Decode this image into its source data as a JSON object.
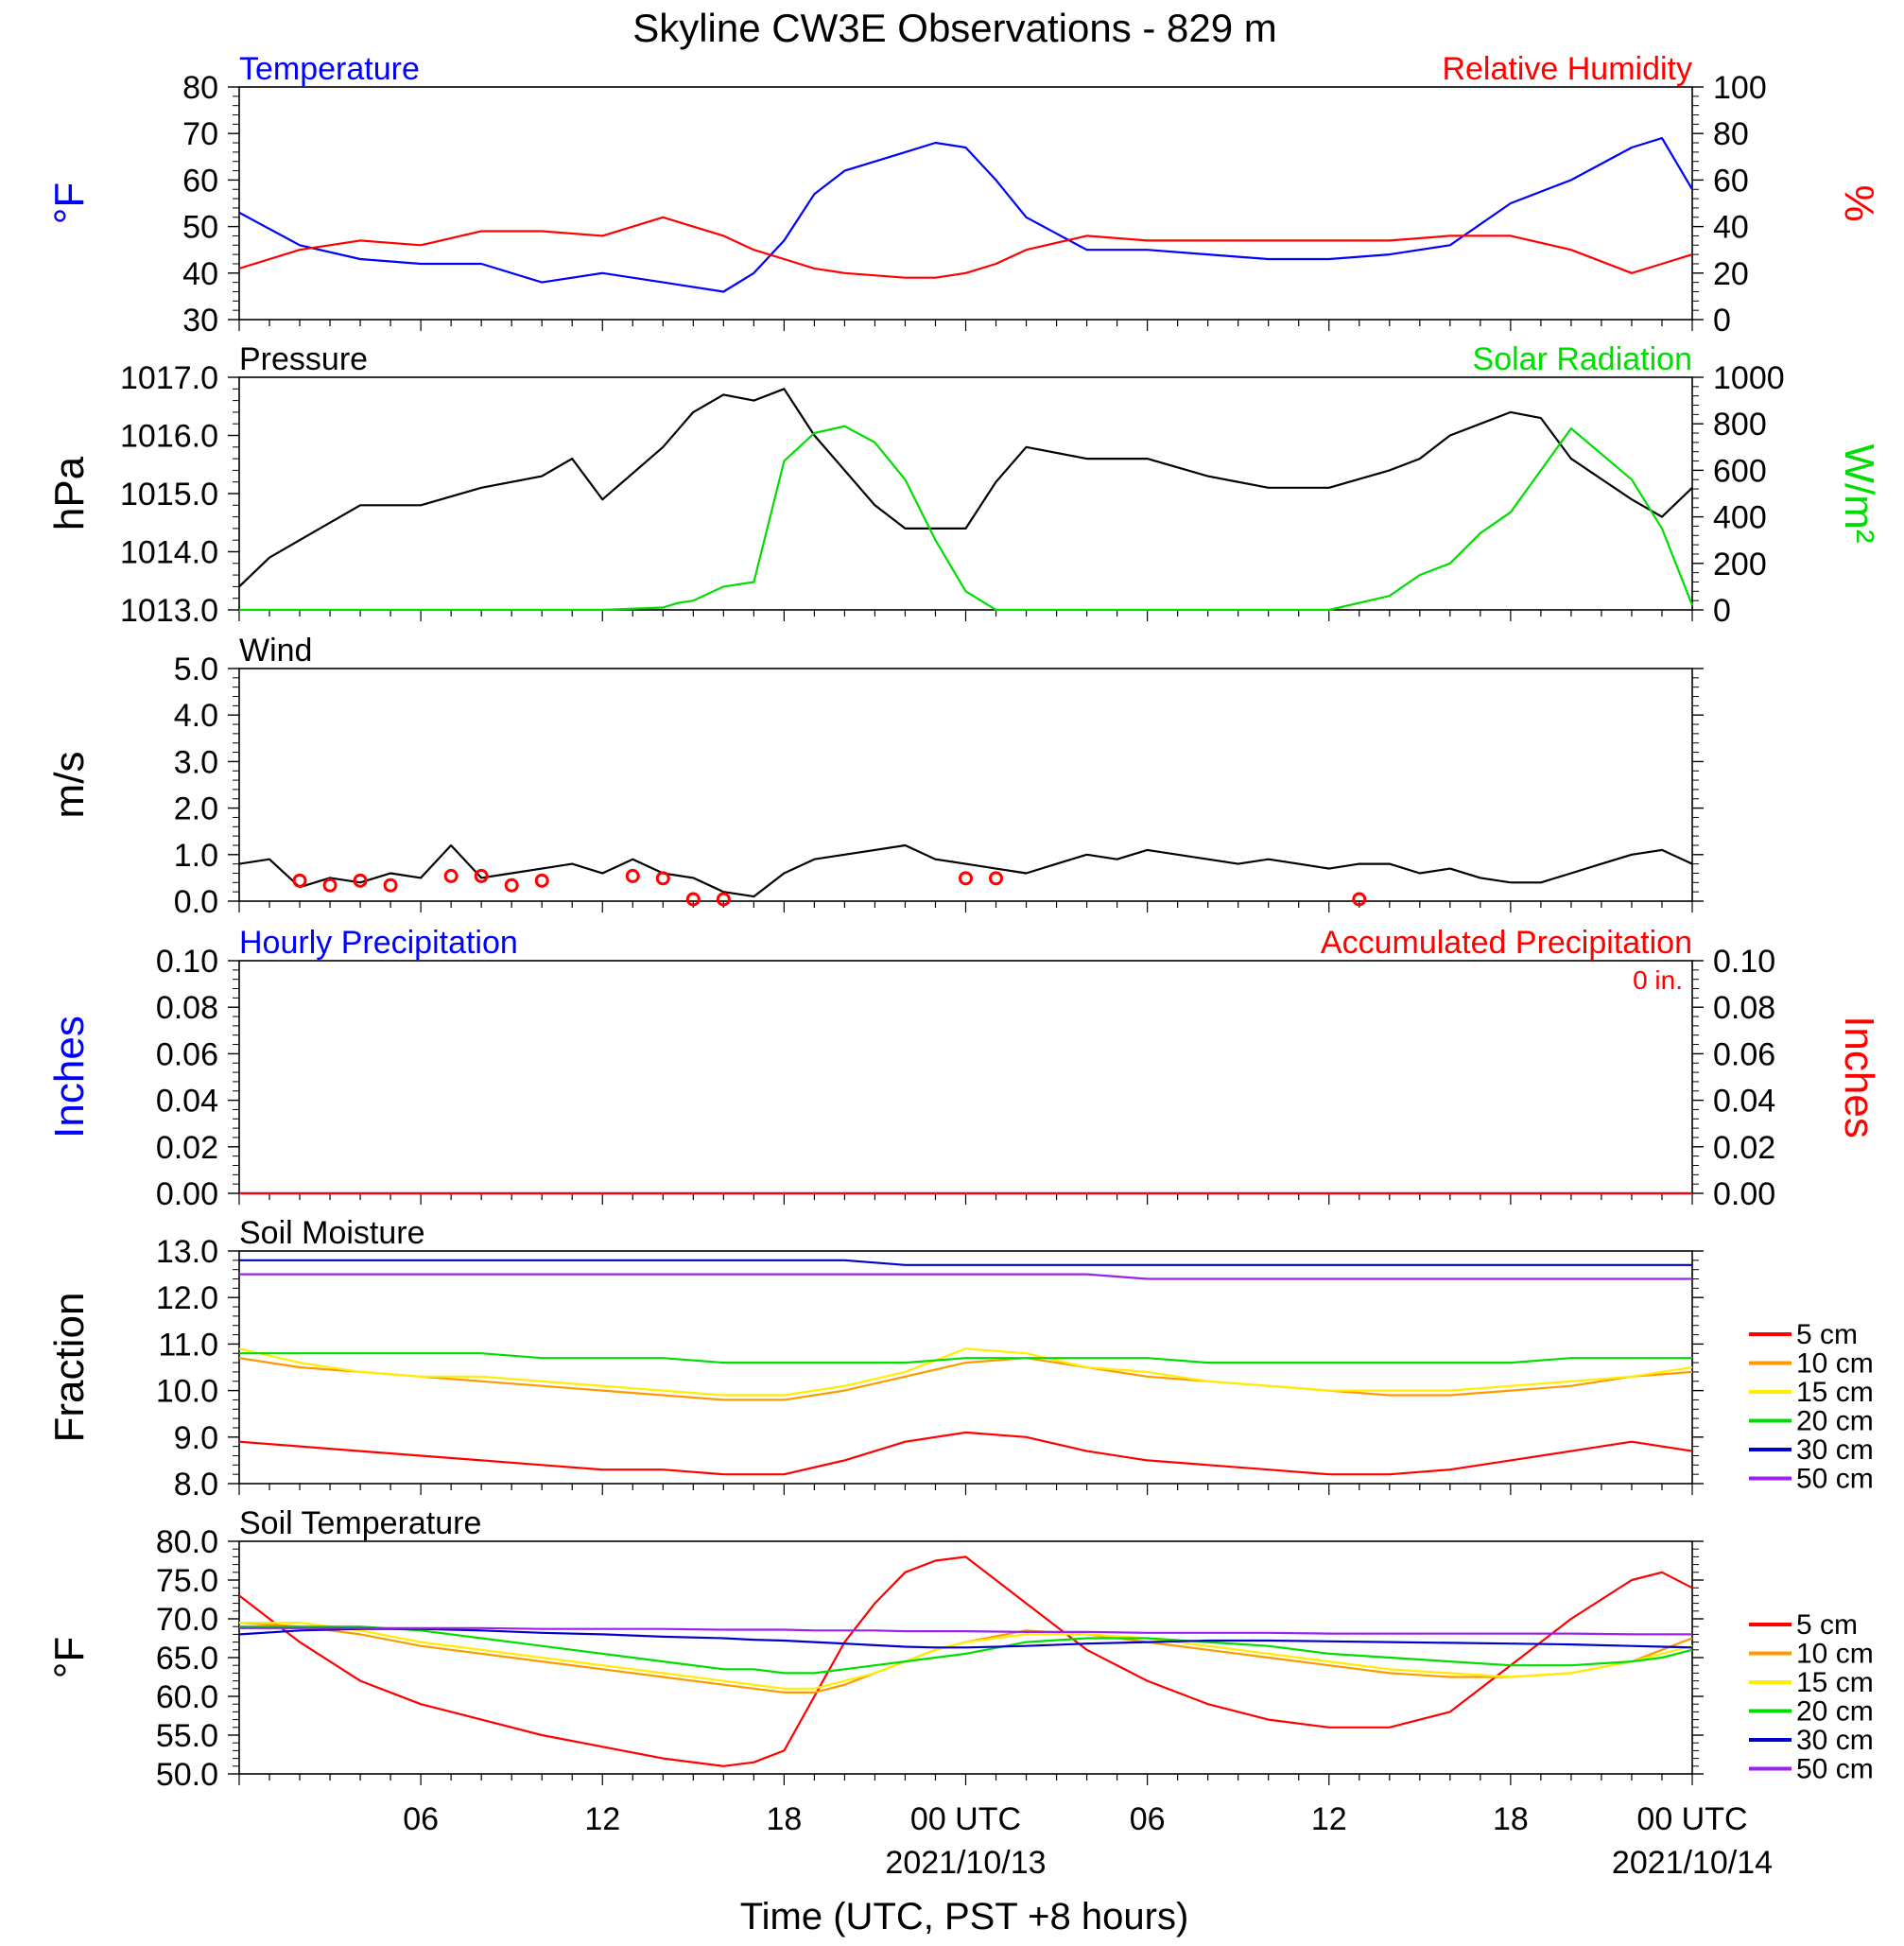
{
  "title": "Skyline CW3E Observations - 829 m",
  "xlabel": "Time (UTC, PST +8 hours)",
  "xticks": [
    {
      "h": 6,
      "label": "06",
      "date": ""
    },
    {
      "h": 12,
      "label": "12",
      "date": ""
    },
    {
      "h": 18,
      "label": "18",
      "date": ""
    },
    {
      "h": 24,
      "label": "00 UTC",
      "date": "2021/10/13"
    },
    {
      "h": 30,
      "label": "06",
      "date": ""
    },
    {
      "h": 36,
      "label": "12",
      "date": ""
    },
    {
      "h": 42,
      "label": "18",
      "date": ""
    },
    {
      "h": 48,
      "label": "00 UTC",
      "date": "2021/10/14"
    }
  ],
  "colors": {
    "blue": "#0000ff",
    "red": "#ff0000",
    "green": "#00dd00",
    "black": "#000000",
    "orange": "#ff9900",
    "yellow": "#ffee00",
    "purple": "#9922ee",
    "dark_blue": "#0000cc"
  },
  "chart_data": [
    {
      "id": "temp_rh",
      "type": "line",
      "left_label": "Temperature",
      "right_label": "Relative Humidity",
      "ylabel": "°F",
      "ylabel_right": "%",
      "ylim": [
        30,
        80
      ],
      "ylim_right": [
        0,
        100
      ],
      "yticks": [
        "30",
        "40",
        "50",
        "60",
        "70",
        "80"
      ],
      "yticks_right": [
        "0",
        "20",
        "40",
        "60",
        "80",
        "100"
      ],
      "x_hours": [
        0,
        2,
        4,
        6,
        8,
        10,
        12,
        14,
        16,
        17,
        18,
        19,
        20,
        22,
        23,
        24,
        25,
        26,
        28,
        30,
        32,
        34,
        36,
        38,
        40,
        42,
        44,
        46,
        47,
        48
      ],
      "series": [
        {
          "name": "Temperature",
          "axis": "left",
          "color": "blue",
          "values": [
            53,
            46,
            43,
            42,
            42,
            38,
            40,
            38,
            36,
            40,
            47,
            57,
            62,
            66,
            68,
            67,
            60,
            52,
            45,
            45,
            44,
            43,
            43,
            44,
            46,
            55,
            60,
            67,
            69,
            58
          ]
        },
        {
          "name": "Relative Humidity",
          "axis": "right",
          "color": "red",
          "values": [
            22,
            30,
            34,
            32,
            38,
            38,
            36,
            44,
            36,
            30,
            26,
            22,
            20,
            18,
            18,
            20,
            24,
            30,
            36,
            34,
            34,
            34,
            34,
            34,
            36,
            36,
            30,
            20,
            24,
            28
          ]
        }
      ]
    },
    {
      "id": "press_solar",
      "type": "line",
      "left_label": "Pressure",
      "right_label": "Solar Radiation",
      "ylabel": "hPa",
      "ylabel_right": "W/m²",
      "ylim": [
        1013,
        1017
      ],
      "ylim_right": [
        0,
        1000
      ],
      "yticks": [
        "1013.0",
        "1014.0",
        "1015.0",
        "1016.0",
        "1017.0"
      ],
      "yticks_right": [
        "0",
        "200",
        "400",
        "600",
        "800",
        "1000"
      ],
      "x_hours": [
        0,
        1,
        2,
        4,
        6,
        8,
        10,
        11,
        12,
        14,
        14.5,
        15,
        16,
        17,
        18,
        19,
        20,
        21,
        22,
        23,
        24,
        25,
        26,
        28,
        30,
        32,
        34,
        36,
        38,
        39,
        40,
        41,
        42,
        43,
        44,
        46,
        47,
        48
      ],
      "series": [
        {
          "name": "Pressure",
          "axis": "left",
          "color": "black",
          "values": [
            1013.4,
            1013.9,
            1014.2,
            1014.8,
            1014.8,
            1015.1,
            1015.3,
            1015.6,
            1014.9,
            1015.8,
            1016.1,
            1016.4,
            1016.7,
            1016.6,
            1016.8,
            1016.0,
            1015.4,
            1014.8,
            1014.4,
            1014.4,
            1014.4,
            1015.2,
            1015.8,
            1015.6,
            1015.6,
            1015.3,
            1015.1,
            1015.1,
            1015.4,
            1015.6,
            1016.0,
            1016.2,
            1016.4,
            1016.3,
            1015.6,
            1014.9,
            1014.6,
            1015.1
          ]
        },
        {
          "name": "Solar Radiation",
          "axis": "right",
          "color": "green",
          "values": [
            0,
            0,
            0,
            0,
            0,
            0,
            0,
            0,
            0,
            10,
            30,
            40,
            100,
            120,
            640,
            760,
            790,
            720,
            560,
            300,
            80,
            0,
            0,
            0,
            0,
            0,
            0,
            0,
            60,
            150,
            200,
            330,
            420,
            600,
            780,
            560,
            350,
            20
          ]
        }
      ]
    },
    {
      "id": "wind",
      "type": "line",
      "left_label": "Wind",
      "ylabel": "m/s",
      "ylim": [
        0,
        5
      ],
      "yticks": [
        "0.0",
        "1.0",
        "2.0",
        "3.0",
        "4.0",
        "5.0"
      ],
      "x_hours": [
        0,
        1,
        2,
        3,
        4,
        5,
        6,
        7,
        8,
        9,
        10,
        11,
        12,
        13,
        14,
        15,
        16,
        17,
        18,
        19,
        20,
        21,
        22,
        23,
        24,
        25,
        26,
        27,
        28,
        29,
        30,
        31,
        32,
        33,
        34,
        35,
        36,
        37,
        38,
        39,
        40,
        41,
        42,
        43,
        44,
        45,
        46,
        47,
        48
      ],
      "series": [
        {
          "name": "Wind speed",
          "axis": "left",
          "color": "black",
          "values": [
            0.8,
            0.9,
            0.3,
            0.5,
            0.4,
            0.6,
            0.5,
            1.2,
            0.5,
            0.6,
            0.7,
            0.8,
            0.6,
            0.9,
            0.6,
            0.5,
            0.2,
            0.1,
            0.6,
            0.9,
            1.0,
            1.1,
            1.2,
            0.9,
            0.8,
            0.7,
            0.6,
            0.8,
            1.0,
            0.9,
            1.1,
            1.0,
            0.9,
            0.8,
            0.9,
            0.8,
            0.7,
            0.8,
            0.8,
            0.6,
            0.7,
            0.5,
            0.4,
            0.4,
            0.6,
            0.8,
            1.0,
            1.1,
            0.8
          ]
        }
      ],
      "calm_markers_hours": [
        2,
        3,
        4,
        5,
        7,
        8,
        9,
        10,
        13,
        14,
        15,
        16,
        24,
        25,
        37
      ],
      "calm_markers_values": [
        0.4,
        0.3,
        0.4,
        0.3,
        0.5,
        0.5,
        0.3,
        0.4,
        0.5,
        0.45,
        0.0,
        0.0,
        0.45,
        0.45,
        0.0
      ]
    },
    {
      "id": "precip",
      "type": "line",
      "left_label": "Hourly Precipitation",
      "right_label": "Accumulated Precipitation",
      "annotation": "0 in.",
      "ylabel": "Inches",
      "ylabel_right": "Inches",
      "ylim": [
        0,
        0.1
      ],
      "ylim_right": [
        0,
        0.1
      ],
      "yticks": [
        "0.00",
        "0.02",
        "0.04",
        "0.06",
        "0.08",
        "0.10"
      ],
      "yticks_right": [
        "0.00",
        "0.02",
        "0.04",
        "0.06",
        "0.08",
        "0.10"
      ],
      "x_hours": [
        0,
        48
      ],
      "series": [
        {
          "name": "Hourly Precipitation",
          "axis": "left",
          "color": "blue",
          "values": [
            0,
            0
          ]
        },
        {
          "name": "Accumulated Precipitation",
          "axis": "right",
          "color": "red",
          "values": [
            0,
            0
          ]
        }
      ]
    },
    {
      "id": "soil_moist",
      "type": "line",
      "left_label": "Soil Moisture",
      "ylabel": "Fraction",
      "ylim": [
        8,
        13
      ],
      "yticks": [
        "8.0",
        "9.0",
        "10.0",
        "11.0",
        "12.0",
        "13.0"
      ],
      "x_hours": [
        0,
        2,
        4,
        6,
        8,
        10,
        12,
        14,
        16,
        18,
        20,
        22,
        24,
        26,
        28,
        30,
        32,
        34,
        36,
        38,
        40,
        42,
        44,
        46,
        48
      ],
      "legend": [
        "5 cm",
        "10 cm",
        "15 cm",
        "20 cm",
        "30 cm",
        "50 cm"
      ],
      "series": [
        {
          "name": "5 cm",
          "color": "red",
          "values": [
            8.9,
            8.8,
            8.7,
            8.6,
            8.5,
            8.4,
            8.3,
            8.3,
            8.2,
            8.2,
            8.5,
            8.9,
            9.1,
            9.0,
            8.7,
            8.5,
            8.4,
            8.3,
            8.2,
            8.2,
            8.3,
            8.5,
            8.7,
            8.9,
            8.7
          ]
        },
        {
          "name": "10 cm",
          "color": "orange",
          "values": [
            10.7,
            10.5,
            10.4,
            10.3,
            10.2,
            10.1,
            10.0,
            9.9,
            9.8,
            9.8,
            10.0,
            10.3,
            10.6,
            10.7,
            10.5,
            10.3,
            10.2,
            10.1,
            10.0,
            9.9,
            9.9,
            10.0,
            10.1,
            10.3,
            10.4
          ]
        },
        {
          "name": "15 cm",
          "color": "yellow",
          "values": [
            10.9,
            10.6,
            10.4,
            10.3,
            10.3,
            10.2,
            10.1,
            10.0,
            9.9,
            9.9,
            10.1,
            10.4,
            10.9,
            10.8,
            10.5,
            10.4,
            10.2,
            10.1,
            10.0,
            10.0,
            10.0,
            10.1,
            10.2,
            10.3,
            10.5
          ]
        },
        {
          "name": "20 cm",
          "color": "green",
          "values": [
            10.8,
            10.8,
            10.8,
            10.8,
            10.8,
            10.7,
            10.7,
            10.7,
            10.6,
            10.6,
            10.6,
            10.6,
            10.7,
            10.7,
            10.7,
            10.7,
            10.6,
            10.6,
            10.6,
            10.6,
            10.6,
            10.6,
            10.7,
            10.7,
            10.7
          ]
        },
        {
          "name": "30 cm",
          "color": "dark_blue",
          "values": [
            12.8,
            12.8,
            12.8,
            12.8,
            12.8,
            12.8,
            12.8,
            12.8,
            12.8,
            12.8,
            12.8,
            12.7,
            12.7,
            12.7,
            12.7,
            12.7,
            12.7,
            12.7,
            12.7,
            12.7,
            12.7,
            12.7,
            12.7,
            12.7,
            12.7
          ]
        },
        {
          "name": "50 cm",
          "color": "purple",
          "values": [
            12.5,
            12.5,
            12.5,
            12.5,
            12.5,
            12.5,
            12.5,
            12.5,
            12.5,
            12.5,
            12.5,
            12.5,
            12.5,
            12.5,
            12.5,
            12.4,
            12.4,
            12.4,
            12.4,
            12.4,
            12.4,
            12.4,
            12.4,
            12.4,
            12.4
          ]
        }
      ]
    },
    {
      "id": "soil_temp",
      "type": "line",
      "left_label": "Soil Temperature",
      "ylabel": "°F",
      "ylim": [
        50,
        80
      ],
      "yticks": [
        "50.0",
        "55.0",
        "60.0",
        "65.0",
        "70.0",
        "75.0",
        "80.0"
      ],
      "x_hours": [
        0,
        2,
        4,
        6,
        8,
        10,
        12,
        14,
        16,
        17,
        18,
        19,
        20,
        21,
        22,
        23,
        24,
        26,
        28,
        30,
        32,
        34,
        36,
        38,
        40,
        42,
        44,
        46,
        47,
        48
      ],
      "legend": [
        "5 cm",
        "10 cm",
        "15 cm",
        "20 cm",
        "30 cm",
        "50 cm"
      ],
      "series": [
        {
          "name": "5 cm",
          "color": "red",
          "values": [
            73,
            67,
            62,
            59,
            57,
            55,
            53.5,
            52,
            51,
            51.5,
            53,
            60,
            67,
            72,
            76,
            77.5,
            78,
            72,
            66,
            62,
            59,
            57,
            56,
            56,
            58,
            64,
            70,
            75,
            76,
            74
          ]
        },
        {
          "name": "10 cm",
          "color": "orange",
          "values": [
            69.5,
            69,
            68,
            66.5,
            65.5,
            64.5,
            63.5,
            62.5,
            61.5,
            61,
            60.5,
            60.5,
            61.5,
            63,
            64.5,
            66,
            67,
            68.5,
            68,
            67,
            66,
            65,
            64,
            63,
            62.5,
            62.5,
            63,
            64.5,
            66,
            67.5
          ]
        },
        {
          "name": "15 cm",
          "color": "yellow",
          "values": [
            69.5,
            69.5,
            68.5,
            67,
            66,
            65,
            64,
            63,
            62,
            61.5,
            61,
            61,
            62,
            63,
            64.5,
            66,
            67,
            68,
            68,
            67.5,
            66.5,
            65.5,
            64.5,
            63.5,
            63,
            62.5,
            63,
            64.5,
            65.5,
            66.5
          ]
        },
        {
          "name": "20 cm",
          "color": "green",
          "values": [
            69,
            69,
            69,
            68.5,
            67.5,
            66.5,
            65.5,
            64.5,
            63.5,
            63.5,
            63,
            63,
            63.5,
            64,
            64.5,
            65,
            65.5,
            67,
            67.5,
            67.5,
            67,
            66.5,
            65.5,
            65,
            64.5,
            64,
            64,
            64.5,
            65,
            66
          ]
        },
        {
          "name": "30 cm",
          "color": "dark_blue",
          "values": [
            68,
            68.5,
            68.7,
            68.7,
            68.5,
            68.2,
            68,
            67.7,
            67.5,
            67.3,
            67.2,
            67,
            66.8,
            66.6,
            66.4,
            66.3,
            66.3,
            66.5,
            66.8,
            67,
            67.2,
            67.2,
            67.1,
            67,
            66.9,
            66.8,
            66.7,
            66.5,
            66.4,
            66.3
          ]
        },
        {
          "name": "50 cm",
          "color": "purple",
          "values": [
            68.8,
            68.8,
            68.8,
            68.8,
            68.8,
            68.7,
            68.7,
            68.7,
            68.6,
            68.6,
            68.6,
            68.5,
            68.5,
            68.5,
            68.4,
            68.4,
            68.4,
            68.3,
            68.3,
            68.2,
            68.2,
            68.2,
            68.1,
            68.1,
            68.1,
            68.1,
            68.1,
            68,
            68,
            68
          ]
        }
      ]
    }
  ]
}
